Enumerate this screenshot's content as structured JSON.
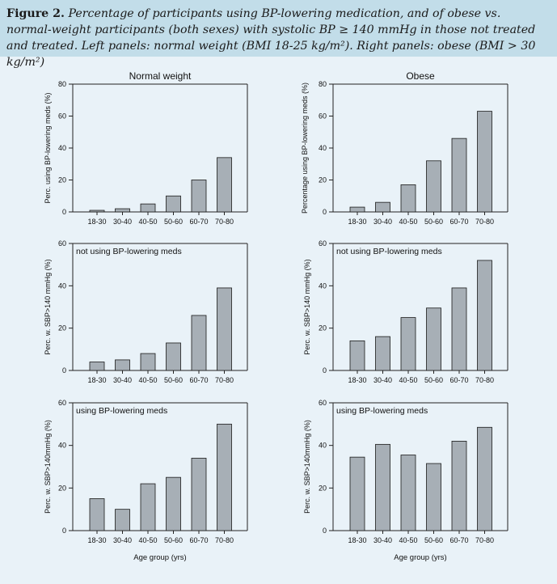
{
  "caption": {
    "label": "Figure 2.",
    "text": "Percentage of participants using BP-lowering medication, and of obese vs. normal-weight participants (both sexes) with systolic BP ≥ 140 mmHg in those not treated and treated. Left panels: normal weight (BMI 18-25 kg/m²). Right panels: obese (BMI > 30 kg/m²)"
  },
  "colors": {
    "bar_fill": "#a7afb6",
    "bar_stroke": "#1a1a1a",
    "background": "#e9f2f8",
    "caption_band": "#c2dde9"
  },
  "chart_data": [
    {
      "id": "nw_meds",
      "type": "bar",
      "title": "Normal weight",
      "annotation": "",
      "xlabel": "",
      "ylabel": "Perc. using BP-lowering meds (%)",
      "ylim": [
        0,
        80
      ],
      "yticks": [
        0,
        20,
        40,
        60,
        80
      ],
      "categories": [
        "18-30",
        "30-40",
        "40-50",
        "50-60",
        "60-70",
        "70-80"
      ],
      "values": [
        1,
        2,
        5,
        10,
        20,
        34
      ]
    },
    {
      "id": "ob_meds",
      "type": "bar",
      "title": "Obese",
      "annotation": "",
      "xlabel": "",
      "ylabel": "Percentage using BP-lowering meds (%)",
      "ylim": [
        0,
        80
      ],
      "yticks": [
        0,
        20,
        40,
        60,
        80
      ],
      "categories": [
        "18-30",
        "30-40",
        "40-50",
        "50-60",
        "60-70",
        "70-80"
      ],
      "values": [
        3,
        6,
        17,
        32,
        46,
        63
      ]
    },
    {
      "id": "nw_untreated",
      "type": "bar",
      "title": "",
      "annotation": "not using BP-lowering meds",
      "xlabel": "",
      "ylabel": "Perc. w. SBP>140 mmHg (%)",
      "ylim": [
        0,
        60
      ],
      "yticks": [
        0,
        20,
        40,
        60
      ],
      "categories": [
        "18-30",
        "30-40",
        "40-50",
        "50-60",
        "60-70",
        "70-80"
      ],
      "values": [
        4,
        5,
        8,
        13,
        26,
        39
      ]
    },
    {
      "id": "ob_untreated",
      "type": "bar",
      "title": "",
      "annotation": "not using BP-lowering meds",
      "xlabel": "",
      "ylabel": "Perc. w. SBP>140 mmHg (%)",
      "ylim": [
        0,
        60
      ],
      "yticks": [
        0,
        20,
        40,
        60
      ],
      "categories": [
        "18-30",
        "30-40",
        "40-50",
        "50-60",
        "60-70",
        "70-80"
      ],
      "values": [
        14,
        16,
        25,
        29.5,
        39,
        52
      ]
    },
    {
      "id": "nw_treated",
      "type": "bar",
      "title": "",
      "annotation": "using BP-lowering meds",
      "xlabel": "Age group (yrs)",
      "ylabel": "Perc. w. SBP>140mmHg (%)",
      "ylim": [
        0,
        60
      ],
      "yticks": [
        0,
        20,
        40,
        60
      ],
      "categories": [
        "18-30",
        "30-40",
        "40-50",
        "50-60",
        "60-70",
        "70-80"
      ],
      "values": [
        15,
        10,
        22,
        25,
        34,
        50
      ]
    },
    {
      "id": "ob_treated",
      "type": "bar",
      "title": "",
      "annotation": "using BP-lowering meds",
      "xlabel": "Age group (yrs)",
      "ylabel": "Perc. w. SBP>140mmHg (%)",
      "ylim": [
        0,
        60
      ],
      "yticks": [
        0,
        20,
        40,
        60
      ],
      "categories": [
        "18-30",
        "30-40",
        "40-50",
        "50-60",
        "60-70",
        "70-80"
      ],
      "values": [
        34.5,
        40.5,
        35.5,
        31.5,
        42,
        48.5
      ]
    }
  ]
}
